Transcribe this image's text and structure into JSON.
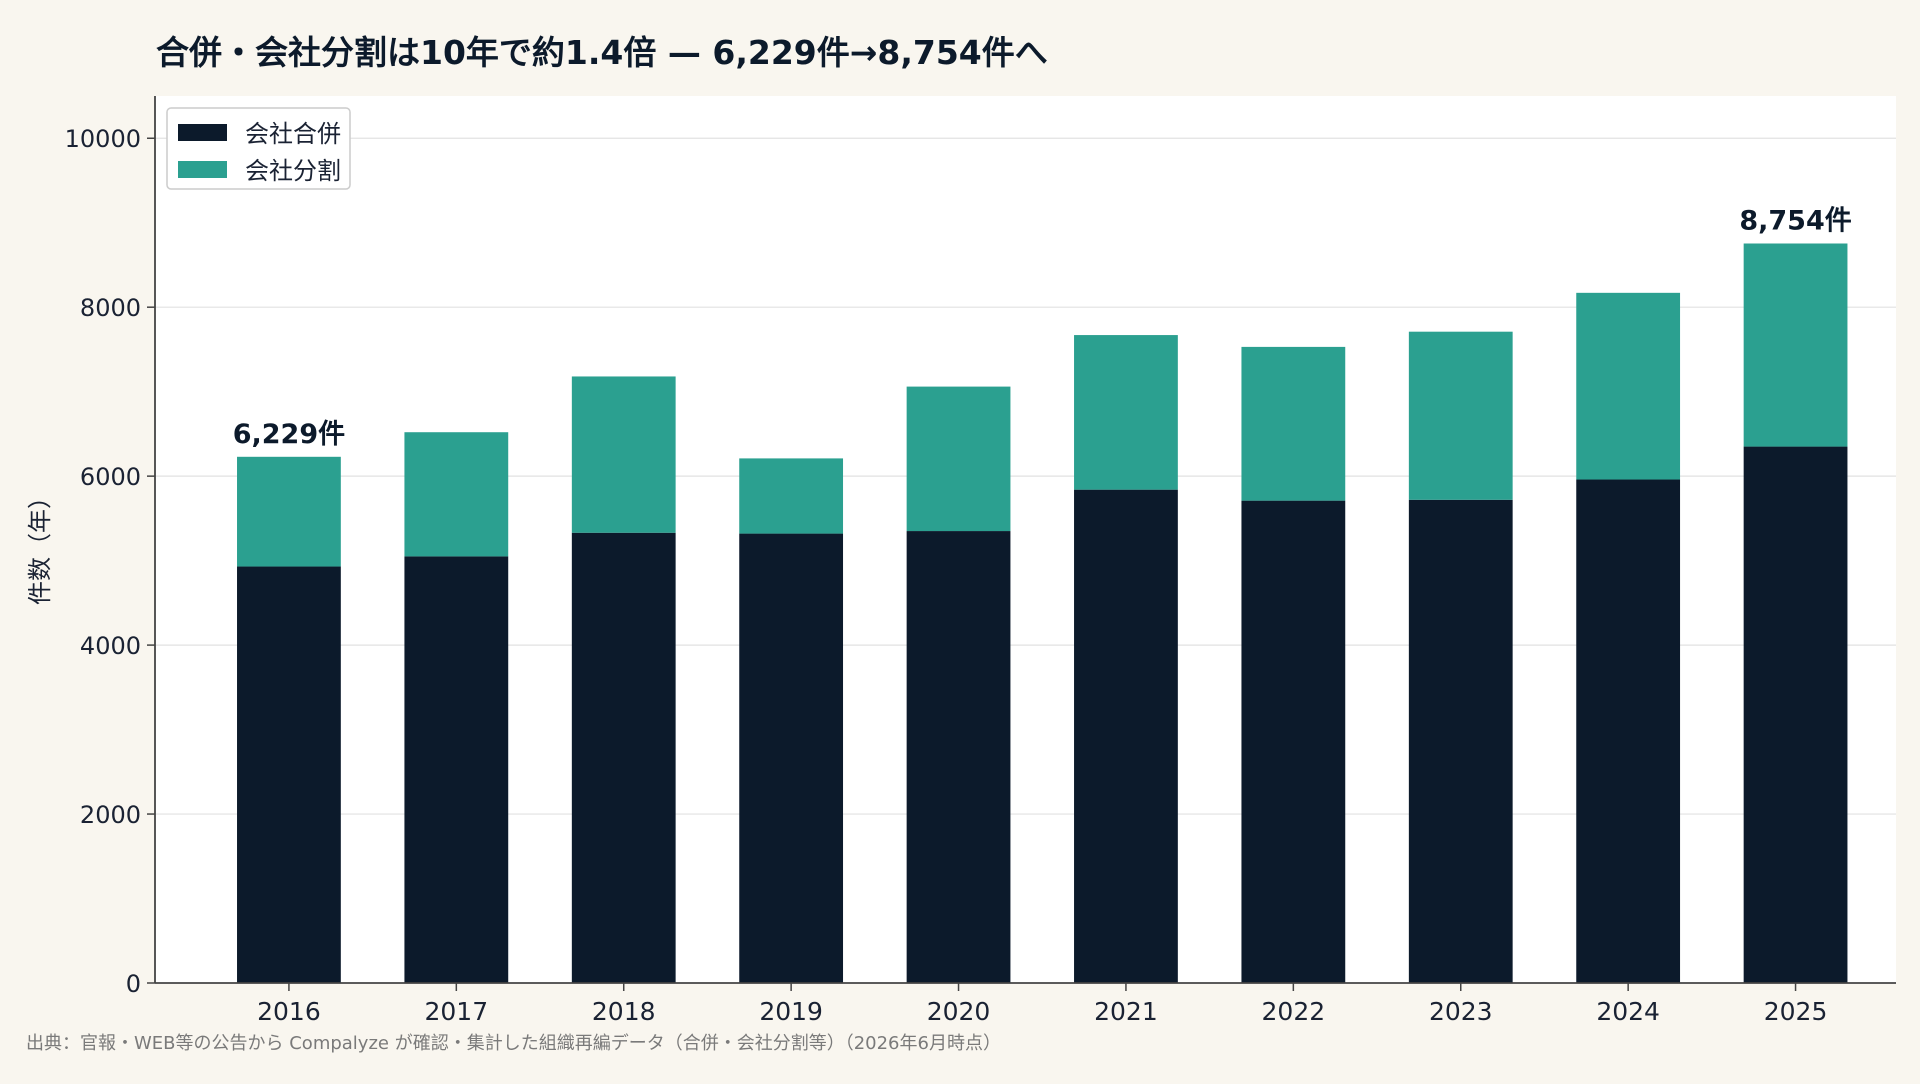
{
  "chart_data": {
    "type": "bar",
    "stacked": true,
    "title": "合併・会社分割は10年で約1.4倍 — 6,229件→8,754件へ",
    "ylabel": "件数（年）",
    "xlabel": "",
    "ylim": [
      0,
      10500
    ],
    "yticks": [
      0,
      2000,
      4000,
      6000,
      8000,
      10000
    ],
    "grid": true,
    "legend_position": "top-left",
    "categories": [
      "2016",
      "2017",
      "2018",
      "2019",
      "2020",
      "2021",
      "2022",
      "2023",
      "2024",
      "2025"
    ],
    "series": [
      {
        "name": "会社合併",
        "color": "#0c1a2b",
        "values": [
          4930,
          5050,
          5330,
          5320,
          5350,
          5840,
          5710,
          5720,
          5960,
          6350
        ]
      },
      {
        "name": "会社分割",
        "color": "#2ba090",
        "values": [
          1299,
          1470,
          1850,
          890,
          1710,
          1830,
          1820,
          1990,
          2210,
          2404
        ]
      }
    ],
    "annotations": [
      {
        "category": "2016",
        "text": "6,229件"
      },
      {
        "category": "2025",
        "text": "8,754件"
      }
    ],
    "source_note": "出典：官報・WEB等の公告から Compalyze が確認・集計した組織再編データ（合併・会社分割等）（2026年6月時点）"
  }
}
